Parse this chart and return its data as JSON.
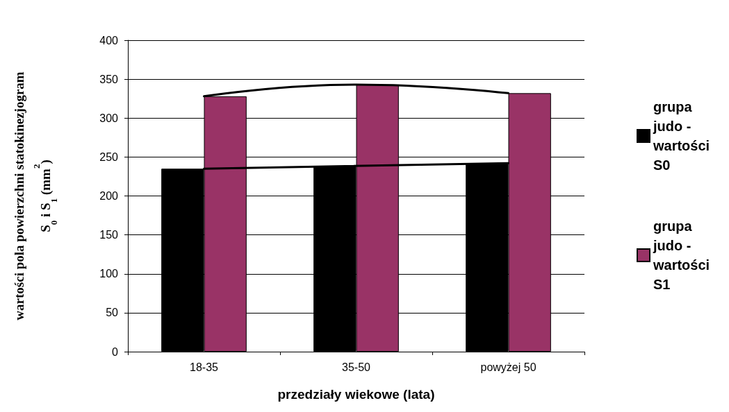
{
  "chart_data": {
    "type": "bar",
    "xlabel": "przedziały wiekowe (lata)",
    "ylabel": "wartości pola powierzchni statokinezjogram\nS$_{0}$ i S$_{1}$ (mm$^{2}$)",
    "categories": [
      "18-35",
      "35-50",
      "powyżej 50"
    ],
    "series": [
      {
        "name": "grupa judo - wartości S0",
        "color": "#000000",
        "values": [
          235,
          238,
          242
        ]
      },
      {
        "name": "grupa judo - wartości S1",
        "color": "#993366",
        "values": [
          328,
          343,
          332
        ]
      },
      {
        "type": "line",
        "color": "#000000",
        "x": [
          "18-35",
          "powyżej 50"
        ],
        "values": [
          235,
          242
        ]
      },
      {
        "type": "line",
        "color": "#000000",
        "x": [
          "18-35",
          "35-50",
          "powyżej 50"
        ],
        "values": [
          328,
          343,
          332
        ]
      }
    ],
    "ylim": [
      0,
      400
    ],
    "yticks": [
      0,
      50,
      100,
      150,
      200,
      250,
      300,
      350,
      400
    ],
    "grid": "y",
    "legend": "right"
  }
}
